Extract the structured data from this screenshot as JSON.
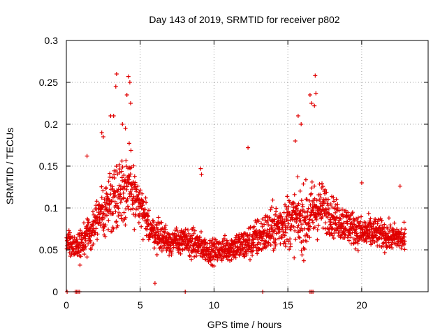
{
  "chart_data": {
    "type": "scatter",
    "title": "Day 143 of 2019, SRMTID for receiver p802",
    "xlabel": "GPS time / hours",
    "ylabel": "SRMTID / TECUs",
    "xlim": [
      0,
      24.5
    ],
    "ylim": [
      0,
      0.3
    ],
    "x_ticks": [
      0,
      5,
      10,
      15,
      20
    ],
    "x_tick_labels": [
      "0",
      "5",
      "10",
      "15",
      "20"
    ],
    "y_ticks": [
      0,
      0.05,
      0.1,
      0.15,
      0.2,
      0.25,
      0.3
    ],
    "y_tick_labels": [
      "0",
      "0.05",
      "0.1",
      "0.15",
      "0.2",
      "0.25",
      "0.3"
    ],
    "grid": true,
    "marker": "plus",
    "color": "#e00000",
    "series": [
      {
        "name": "SRMTID",
        "profile_hours": [
          0,
          0.5,
          1,
          1.5,
          2,
          2.5,
          3,
          3.5,
          4,
          4.5,
          5,
          5.5,
          6,
          6.5,
          7,
          7.5,
          8,
          8.5,
          9,
          9.5,
          10,
          10.5,
          11,
          11.5,
          12,
          12.5,
          13,
          13.5,
          14,
          14.5,
          15,
          15.5,
          16,
          16.5,
          17,
          17.5,
          18,
          18.5,
          19,
          19.5,
          20,
          20.5,
          21,
          21.5,
          22,
          22.5,
          23
        ],
        "profile_center": [
          0.06,
          0.055,
          0.055,
          0.07,
          0.085,
          0.095,
          0.11,
          0.12,
          0.125,
          0.12,
          0.1,
          0.08,
          0.07,
          0.065,
          0.06,
          0.06,
          0.06,
          0.058,
          0.055,
          0.05,
          0.048,
          0.05,
          0.052,
          0.055,
          0.055,
          0.06,
          0.065,
          0.07,
          0.075,
          0.08,
          0.085,
          0.085,
          0.085,
          0.09,
          0.1,
          0.1,
          0.09,
          0.085,
          0.08,
          0.075,
          0.07,
          0.07,
          0.07,
          0.068,
          0.065,
          0.065,
          0.06
        ],
        "profile_spread": [
          0.02,
          0.02,
          0.025,
          0.03,
          0.035,
          0.04,
          0.05,
          0.055,
          0.055,
          0.045,
          0.035,
          0.025,
          0.022,
          0.022,
          0.02,
          0.02,
          0.02,
          0.022,
          0.022,
          0.018,
          0.018,
          0.018,
          0.02,
          0.022,
          0.025,
          0.028,
          0.03,
          0.032,
          0.035,
          0.035,
          0.04,
          0.045,
          0.05,
          0.05,
          0.045,
          0.035,
          0.03,
          0.028,
          0.028,
          0.025,
          0.025,
          0.025,
          0.022,
          0.022,
          0.02,
          0.02,
          0.02
        ],
        "outliers": [
          [
            3.4,
            0.26
          ],
          [
            3.35,
            0.245
          ],
          [
            4.2,
            0.257
          ],
          [
            4.3,
            0.25
          ],
          [
            4.1,
            0.235
          ],
          [
            4.35,
            0.225
          ],
          [
            3.0,
            0.21
          ],
          [
            3.2,
            0.21
          ],
          [
            2.4,
            0.19
          ],
          [
            2.5,
            0.185
          ],
          [
            3.8,
            0.2
          ],
          [
            4.0,
            0.195
          ],
          [
            1.4,
            0.162
          ],
          [
            9.1,
            0.147
          ],
          [
            9.15,
            0.14
          ],
          [
            12.3,
            0.172
          ],
          [
            16.5,
            0.235
          ],
          [
            16.6,
            0.225
          ],
          [
            16.85,
            0.258
          ],
          [
            16.9,
            0.237
          ],
          [
            16.8,
            0.222
          ],
          [
            15.7,
            0.21
          ],
          [
            15.9,
            0.2
          ],
          [
            15.5,
            0.18
          ],
          [
            6.0,
            0.01
          ],
          [
            22.6,
            0.126
          ],
          [
            20.0,
            0.13
          ]
        ],
        "zero_hours": [
          0.05,
          0.6,
          0.7,
          0.8,
          0.9,
          8.05,
          13.3,
          16.5,
          16.6,
          16.7
        ]
      }
    ]
  }
}
